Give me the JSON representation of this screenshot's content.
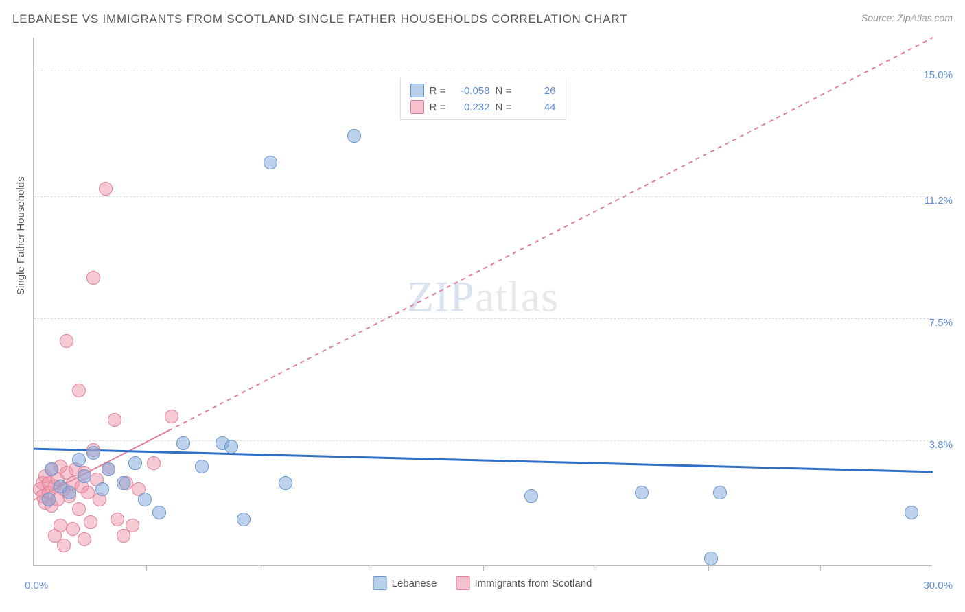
{
  "title": "LEBANESE VS IMMIGRANTS FROM SCOTLAND SINGLE FATHER HOUSEHOLDS CORRELATION CHART",
  "source": "Source: ZipAtlas.com",
  "y_axis_label": "Single Father Households",
  "watermark": "ZIPatlas",
  "chart": {
    "type": "scatter",
    "background_color": "#ffffff",
    "grid_color": "#dddddd",
    "axis_color": "#bbbbbb",
    "xlim": [
      0,
      30
    ],
    "ylim": [
      0,
      16
    ],
    "x_min_label": "0.0%",
    "x_max_label": "30.0%",
    "x_ticks": [
      3.75,
      7.5,
      11.25,
      15,
      18.75,
      22.5,
      26.25,
      30
    ],
    "y_gridlines": [
      3.8,
      7.5,
      11.2,
      15.0
    ],
    "y_grid_labels": [
      "3.8%",
      "7.5%",
      "11.2%",
      "15.0%"
    ],
    "tick_label_color": "#5b8cd4",
    "axis_label_color": "#555555",
    "label_fontsize": 15,
    "title_fontsize": 17,
    "title_color": "#555555",
    "source_color": "#999999"
  },
  "series": {
    "lebanese": {
      "label": "Lebanese",
      "fill_color": "rgba(122,165,220,0.5)",
      "stroke_color": "#6a96c9",
      "swatch_fill": "#b9d0ec",
      "swatch_border": "#6a96c9",
      "marker_radius": 10,
      "R": "-0.058",
      "N": "26",
      "trend": {
        "color": "#2f6fc4",
        "width": 3,
        "dash": "none",
        "y_at_x0": 3.55,
        "y_at_xmax": 2.85,
        "solid_end_x": 30
      },
      "points": [
        {
          "x": 0.5,
          "y": 2.0
        },
        {
          "x": 0.6,
          "y": 2.9
        },
        {
          "x": 0.9,
          "y": 2.4
        },
        {
          "x": 1.2,
          "y": 2.2
        },
        {
          "x": 1.5,
          "y": 3.2
        },
        {
          "x": 1.7,
          "y": 2.7
        },
        {
          "x": 2.0,
          "y": 3.4
        },
        {
          "x": 2.3,
          "y": 2.3
        },
        {
          "x": 2.5,
          "y": 2.9
        },
        {
          "x": 3.0,
          "y": 2.5
        },
        {
          "x": 3.4,
          "y": 3.1
        },
        {
          "x": 3.7,
          "y": 2.0
        },
        {
          "x": 4.2,
          "y": 1.6
        },
        {
          "x": 5.0,
          "y": 3.7
        },
        {
          "x": 5.6,
          "y": 3.0
        },
        {
          "x": 6.3,
          "y": 3.7
        },
        {
          "x": 6.6,
          "y": 3.6
        },
        {
          "x": 7.0,
          "y": 1.4
        },
        {
          "x": 7.9,
          "y": 12.2
        },
        {
          "x": 8.4,
          "y": 2.5
        },
        {
          "x": 10.7,
          "y": 13.0
        },
        {
          "x": 16.6,
          "y": 2.1
        },
        {
          "x": 20.3,
          "y": 2.2
        },
        {
          "x": 22.9,
          "y": 2.2
        },
        {
          "x": 22.6,
          "y": 0.2
        },
        {
          "x": 29.3,
          "y": 1.6
        }
      ]
    },
    "scotland": {
      "label": "Immigrants from Scotland",
      "fill_color": "rgba(238,150,170,0.5)",
      "stroke_color": "#e07f97",
      "swatch_fill": "#f4c3cf",
      "swatch_border": "#e07f97",
      "marker_radius": 10,
      "R": "0.232",
      "N": "44",
      "trend": {
        "color": "#e07f97",
        "width": 2,
        "dash": "6,6",
        "y_at_x0": 2.0,
        "y_at_xmax": 16.0,
        "solid_end_x": 4.5
      },
      "points": [
        {
          "x": 0.2,
          "y": 2.3
        },
        {
          "x": 0.3,
          "y": 2.5
        },
        {
          "x": 0.3,
          "y": 2.1
        },
        {
          "x": 0.4,
          "y": 1.9
        },
        {
          "x": 0.4,
          "y": 2.7
        },
        {
          "x": 0.5,
          "y": 2.5
        },
        {
          "x": 0.5,
          "y": 2.2
        },
        {
          "x": 0.6,
          "y": 2.9
        },
        {
          "x": 0.6,
          "y": 1.8
        },
        {
          "x": 0.7,
          "y": 2.4
        },
        {
          "x": 0.7,
          "y": 0.9
        },
        {
          "x": 0.8,
          "y": 2.0
        },
        {
          "x": 0.8,
          "y": 2.6
        },
        {
          "x": 0.9,
          "y": 1.2
        },
        {
          "x": 0.9,
          "y": 3.0
        },
        {
          "x": 1.0,
          "y": 2.3
        },
        {
          "x": 1.0,
          "y": 0.6
        },
        {
          "x": 1.1,
          "y": 2.8
        },
        {
          "x": 1.1,
          "y": 6.8
        },
        {
          "x": 1.2,
          "y": 2.1
        },
        {
          "x": 1.3,
          "y": 2.5
        },
        {
          "x": 1.3,
          "y": 1.1
        },
        {
          "x": 1.4,
          "y": 2.9
        },
        {
          "x": 1.5,
          "y": 5.3
        },
        {
          "x": 1.5,
          "y": 1.7
        },
        {
          "x": 1.6,
          "y": 2.4
        },
        {
          "x": 1.7,
          "y": 2.8
        },
        {
          "x": 1.7,
          "y": 0.8
        },
        {
          "x": 1.8,
          "y": 2.2
        },
        {
          "x": 1.9,
          "y": 1.3
        },
        {
          "x": 2.0,
          "y": 3.5
        },
        {
          "x": 2.0,
          "y": 8.7
        },
        {
          "x": 2.1,
          "y": 2.6
        },
        {
          "x": 2.2,
          "y": 2.0
        },
        {
          "x": 2.4,
          "y": 11.4
        },
        {
          "x": 2.5,
          "y": 2.9
        },
        {
          "x": 2.7,
          "y": 4.4
        },
        {
          "x": 2.8,
          "y": 1.4
        },
        {
          "x": 3.0,
          "y": 0.9
        },
        {
          "x": 3.1,
          "y": 2.5
        },
        {
          "x": 3.3,
          "y": 1.2
        },
        {
          "x": 3.5,
          "y": 2.3
        },
        {
          "x": 4.0,
          "y": 3.1
        },
        {
          "x": 4.6,
          "y": 4.5
        }
      ]
    }
  },
  "top_legend_labels": {
    "R": "R =",
    "N": "N ="
  }
}
